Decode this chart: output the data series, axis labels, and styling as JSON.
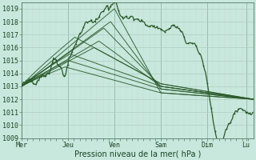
{
  "bg_color": "#c8e8de",
  "grid_color_major": "#b0ccbf",
  "grid_color_minor": "#c0d8cc",
  "line_color": "#2a5a2a",
  "xlabel": "Pression niveau de la mer( hPa )",
  "ylim": [
    1009,
    1019.5
  ],
  "yticks": [
    1009,
    1010,
    1011,
    1012,
    1013,
    1014,
    1015,
    1016,
    1017,
    1018,
    1019
  ],
  "xday_labels": [
    "Mer",
    "Jeu",
    "Ven",
    "Sam",
    "Dim",
    "Lu"
  ],
  "xday_positions": [
    0,
    48,
    96,
    144,
    192,
    232
  ],
  "total_hours": 240,
  "figsize": [
    3.2,
    2.0
  ],
  "dpi": 100
}
